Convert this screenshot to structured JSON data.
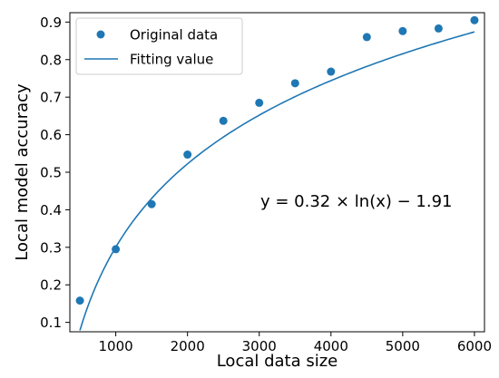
{
  "chart_data": {
    "type": "scatter",
    "title": "",
    "xlabel": "Local data size",
    "ylabel": "Local model accuracy",
    "xlim": [
      360,
      6140
    ],
    "ylim": [
      0.075,
      0.925
    ],
    "x_ticks": [
      1000,
      2000,
      3000,
      4000,
      5000,
      6000
    ],
    "y_ticks": [
      0.1,
      0.2,
      0.3,
      0.4,
      0.5,
      0.6,
      0.7,
      0.8,
      0.9
    ],
    "grid": false,
    "legend": "top-left",
    "series": [
      {
        "name": "Original data",
        "kind": "scatter",
        "color": "#1f77b4",
        "x": [
          500,
          1000,
          1500,
          2000,
          2500,
          3000,
          3500,
          4000,
          4500,
          5000,
          5500,
          6000
        ],
        "y": [
          0.158,
          0.295,
          0.415,
          0.547,
          0.637,
          0.685,
          0.737,
          0.768,
          0.86,
          0.876,
          0.883,
          0.905
        ]
      },
      {
        "name": "Fitting value",
        "kind": "line",
        "color": "#1f77b4",
        "equation": {
          "a": 0.32,
          "b": -1.91
        },
        "x_range": [
          500,
          6000
        ]
      }
    ],
    "annotations": [
      {
        "text": "y = 0.32 × ln(x) − 1.91"
      }
    ]
  }
}
